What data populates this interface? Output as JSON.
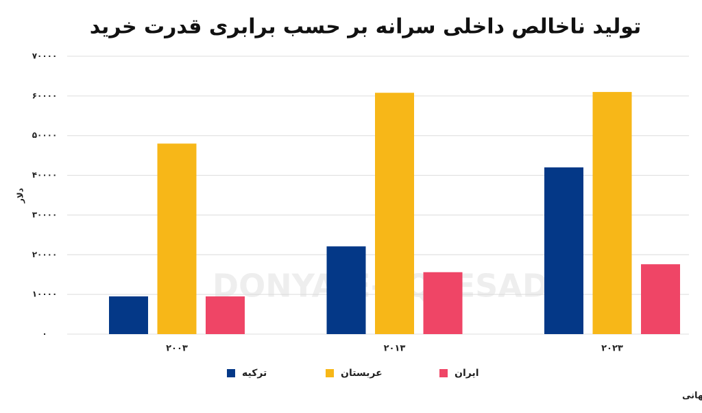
{
  "chart_data": {
    "type": "bar",
    "title": "تولید ناخالص داخلی سرانه بر حسب برابری قدرت خرید",
    "y_label": "دلار",
    "source": "منبع: بانک جهانی",
    "watermark": "DONYA-E-EQTESAD",
    "categories": [
      "۲۰۰۳",
      "۲۰۱۳",
      "۲۰۲۳"
    ],
    "series": [
      {
        "name": "ترکیه",
        "color": "#043887",
        "values": [
          9500,
          22100,
          42000
        ]
      },
      {
        "name": "عربستان",
        "color": "#f7b718",
        "values": [
          48000,
          60800,
          61000
        ]
      },
      {
        "name": "ایران",
        "color": "#ef4566",
        "values": [
          9500,
          15600,
          17600
        ]
      }
    ],
    "ylim": [
      0,
      70000
    ],
    "yticks": [
      {
        "value": 0,
        "label": "۰"
      },
      {
        "value": 10000,
        "label": "۱۰۰۰۰"
      },
      {
        "value": 20000,
        "label": "۲۰۰۰۰"
      },
      {
        "value": 30000,
        "label": "۳۰۰۰۰"
      },
      {
        "value": 40000,
        "label": "۴۰۰۰۰"
      },
      {
        "value": 50000,
        "label": "۵۰۰۰۰"
      },
      {
        "value": 60000,
        "label": "۶۰۰۰۰"
      },
      {
        "value": 70000,
        "label": "۷۰۰۰۰"
      }
    ],
    "grid": true
  }
}
